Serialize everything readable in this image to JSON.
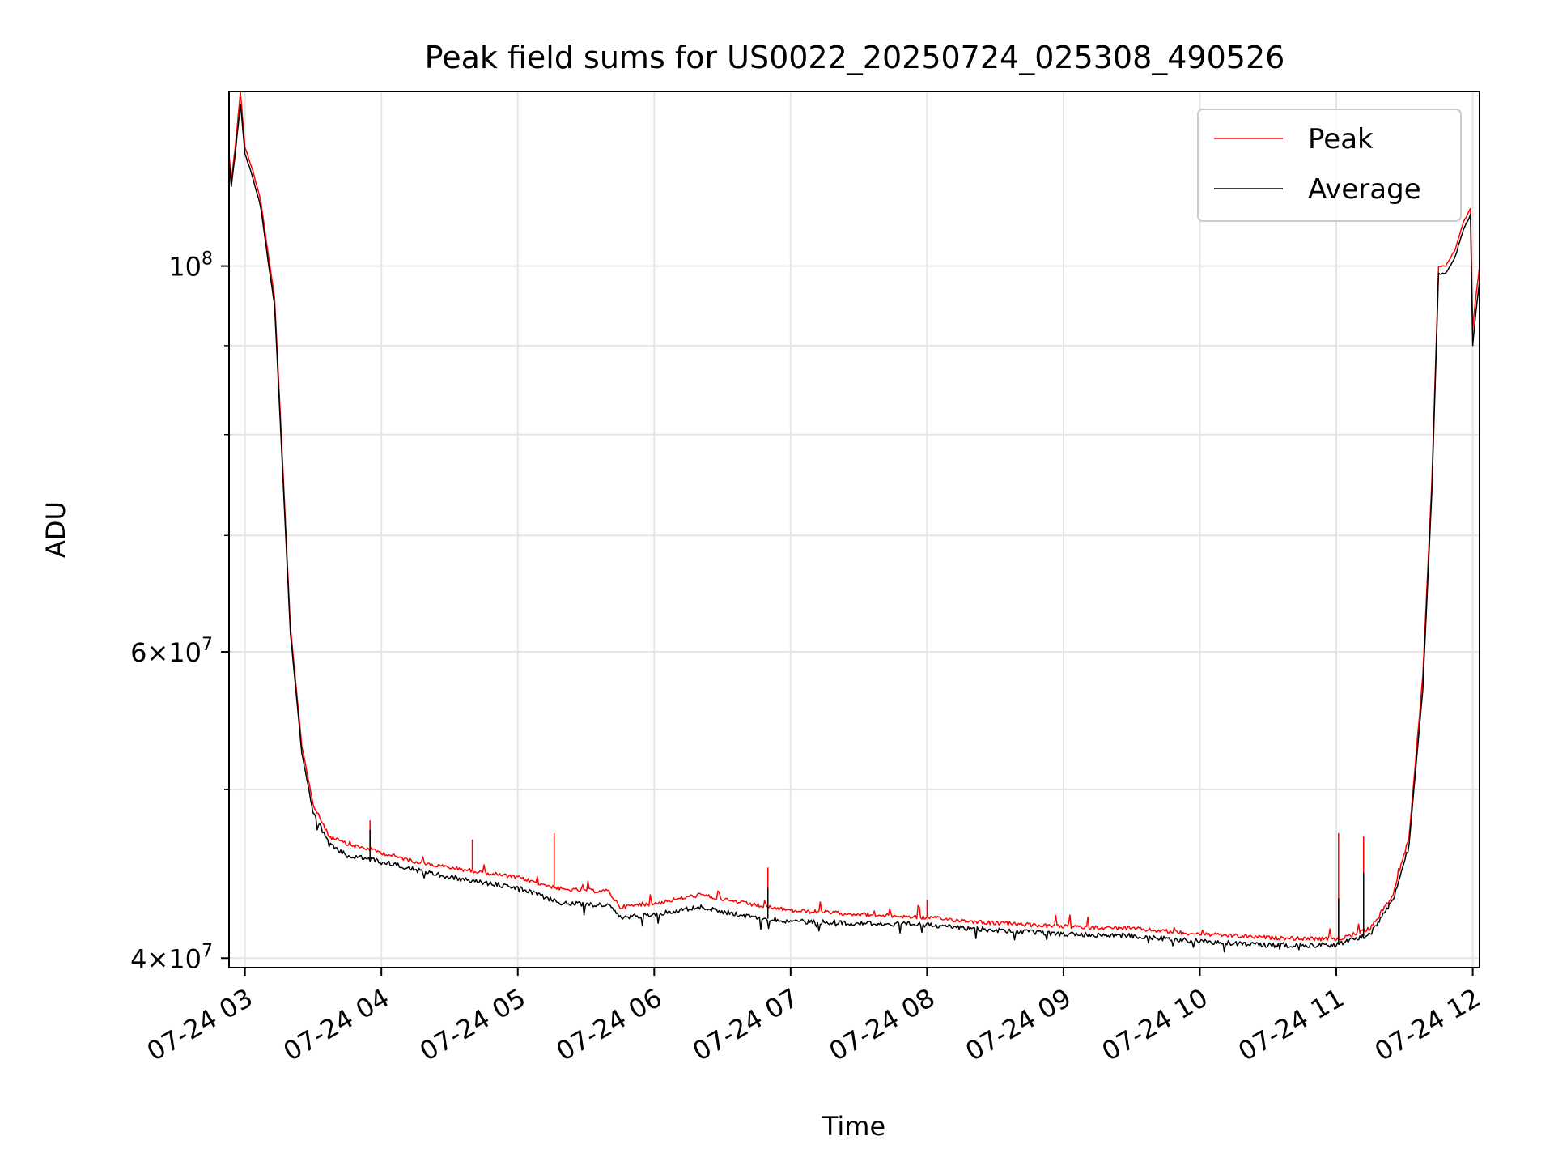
{
  "chart_data": {
    "type": "line",
    "title": "Peak field sums for US0022_20250724_025308_490526",
    "xlabel": "Time",
    "ylabel": "ADU",
    "y_scale": "log",
    "ylim": [
      39500000,
      126000000
    ],
    "xlim": [
      "2025-07-24 02:53",
      "2025-07-24 12:03"
    ],
    "grid": true,
    "legend_position": "top-right",
    "x_ticks": [
      {
        "t": "2025-07-24 03:00",
        "label": "07-24 03"
      },
      {
        "t": "2025-07-24 04:00",
        "label": "07-24 04"
      },
      {
        "t": "2025-07-24 05:00",
        "label": "07-24 05"
      },
      {
        "t": "2025-07-24 06:00",
        "label": "07-24 06"
      },
      {
        "t": "2025-07-24 07:00",
        "label": "07-24 07"
      },
      {
        "t": "2025-07-24 08:00",
        "label": "07-24 08"
      },
      {
        "t": "2025-07-24 09:00",
        "label": "07-24 09"
      },
      {
        "t": "2025-07-24 10:00",
        "label": "07-24 10"
      },
      {
        "t": "2025-07-24 11:00",
        "label": "07-24 11"
      },
      {
        "t": "2025-07-24 12:00",
        "label": "07-24 12"
      }
    ],
    "y_major_ticks": [
      {
        "value": 40000000,
        "base": "4×10",
        "exp": "7"
      },
      {
        "value": 60000000,
        "base": "6×10",
        "exp": "7"
      },
      {
        "value": 100000000,
        "base": "10",
        "exp": "8"
      }
    ],
    "y_minor_ticks": [
      50000000,
      70000000,
      80000000,
      90000000
    ],
    "series": [
      {
        "name": "Peak",
        "color": "#ff0000",
        "points": [
          [
            "2025-07-24 02:53",
            116000000
          ],
          [
            "2025-07-24 02:54",
            112000000
          ],
          [
            "2025-07-24 02:56",
            118000000
          ],
          [
            "2025-07-24 02:58",
            126000000
          ],
          [
            "2025-07-24 03:00",
            117000000
          ],
          [
            "2025-07-24 03:03",
            114000000
          ],
          [
            "2025-07-24 03:07",
            109000000
          ],
          [
            "2025-07-24 03:10",
            102000000
          ],
          [
            "2025-07-24 03:13",
            96000000
          ],
          [
            "2025-07-24 03:16",
            80000000
          ],
          [
            "2025-07-24 03:20",
            62000000
          ],
          [
            "2025-07-24 03:25",
            53000000
          ],
          [
            "2025-07-24 03:30",
            49000000
          ],
          [
            "2025-07-24 03:37",
            47000000
          ],
          [
            "2025-07-24 03:45",
            46500000
          ],
          [
            "2025-07-24 03:55",
            46200000
          ],
          [
            "2025-07-24 04:05",
            45800000
          ],
          [
            "2025-07-24 04:20",
            45300000
          ],
          [
            "2025-07-24 04:40",
            44900000
          ],
          [
            "2025-07-24 05:00",
            44500000
          ],
          [
            "2025-07-24 05:20",
            43800000
          ],
          [
            "2025-07-24 05:40",
            43700000
          ],
          [
            "2025-07-24 05:45",
            42800000
          ],
          [
            "2025-07-24 06:00",
            43000000
          ],
          [
            "2025-07-24 06:20",
            43500000
          ],
          [
            "2025-07-24 06:40",
            43000000
          ],
          [
            "2025-07-24 07:00",
            42600000
          ],
          [
            "2025-07-24 07:30",
            42400000
          ],
          [
            "2025-07-24 08:00",
            42200000
          ],
          [
            "2025-07-24 08:30",
            41900000
          ],
          [
            "2025-07-24 09:00",
            41700000
          ],
          [
            "2025-07-24 09:30",
            41600000
          ],
          [
            "2025-07-24 10:00",
            41300000
          ],
          [
            "2025-07-24 10:30",
            41100000
          ],
          [
            "2025-07-24 11:00",
            41000000
          ],
          [
            "2025-07-24 11:15",
            41600000
          ],
          [
            "2025-07-24 11:25",
            43500000
          ],
          [
            "2025-07-24 11:32",
            47000000
          ],
          [
            "2025-07-24 11:38",
            58000000
          ],
          [
            "2025-07-24 11:42",
            75000000
          ],
          [
            "2025-07-24 11:45",
            100000000
          ],
          [
            "2025-07-24 11:48",
            100000000
          ],
          [
            "2025-07-24 11:52",
            102000000
          ],
          [
            "2025-07-24 11:56",
            106000000
          ],
          [
            "2025-07-24 11:59",
            108000000
          ],
          [
            "2025-07-24 12:00",
            92000000
          ],
          [
            "2025-07-24 12:01",
            95000000
          ],
          [
            "2025-07-24 12:03",
            100000000
          ]
        ],
        "spikes": [
          [
            "2025-07-24 03:55",
            48000000
          ],
          [
            "2025-07-24 04:40",
            46800000
          ],
          [
            "2025-07-24 05:16",
            47200000
          ],
          [
            "2025-07-24 06:50",
            45100000
          ],
          [
            "2025-07-24 08:00",
            43200000
          ],
          [
            "2025-07-24 11:01",
            47200000
          ],
          [
            "2025-07-24 11:12",
            47000000
          ]
        ]
      },
      {
        "name": "Average",
        "color": "#000000",
        "points": [
          [
            "2025-07-24 02:53",
            115000000
          ],
          [
            "2025-07-24 02:54",
            111000000
          ],
          [
            "2025-07-24 02:56",
            117000000
          ],
          [
            "2025-07-24 02:58",
            124000000
          ],
          [
            "2025-07-24 03:00",
            116000000
          ],
          [
            "2025-07-24 03:03",
            113000000
          ],
          [
            "2025-07-24 03:07",
            108000000
          ],
          [
            "2025-07-24 03:10",
            101000000
          ],
          [
            "2025-07-24 03:13",
            95000000
          ],
          [
            "2025-07-24 03:16",
            79000000
          ],
          [
            "2025-07-24 03:20",
            61500000
          ],
          [
            "2025-07-24 03:25",
            52500000
          ],
          [
            "2025-07-24 03:30",
            48500000
          ],
          [
            "2025-07-24 03:37",
            46500000
          ],
          [
            "2025-07-24 03:45",
            45800000
          ],
          [
            "2025-07-24 03:55",
            45600000
          ],
          [
            "2025-07-24 04:05",
            45300000
          ],
          [
            "2025-07-24 04:20",
            44800000
          ],
          [
            "2025-07-24 04:40",
            44300000
          ],
          [
            "2025-07-24 05:00",
            43900000
          ],
          [
            "2025-07-24 05:20",
            43000000
          ],
          [
            "2025-07-24 05:40",
            42900000
          ],
          [
            "2025-07-24 05:45",
            42200000
          ],
          [
            "2025-07-24 06:00",
            42400000
          ],
          [
            "2025-07-24 06:20",
            42800000
          ],
          [
            "2025-07-24 06:40",
            42300000
          ],
          [
            "2025-07-24 07:00",
            42000000
          ],
          [
            "2025-07-24 07:30",
            41900000
          ],
          [
            "2025-07-24 08:00",
            41800000
          ],
          [
            "2025-07-24 08:30",
            41500000
          ],
          [
            "2025-07-24 09:00",
            41300000
          ],
          [
            "2025-07-24 09:30",
            41200000
          ],
          [
            "2025-07-24 10:00",
            40900000
          ],
          [
            "2025-07-24 10:30",
            40700000
          ],
          [
            "2025-07-24 11:00",
            40700000
          ],
          [
            "2025-07-24 11:15",
            41300000
          ],
          [
            "2025-07-24 11:25",
            43200000
          ],
          [
            "2025-07-24 11:32",
            46500000
          ],
          [
            "2025-07-24 11:38",
            57000000
          ],
          [
            "2025-07-24 11:42",
            74000000
          ],
          [
            "2025-07-24 11:45",
            99000000
          ],
          [
            "2025-07-24 11:48",
            99000000
          ],
          [
            "2025-07-24 11:52",
            101000000
          ],
          [
            "2025-07-24 11:56",
            105000000
          ],
          [
            "2025-07-24 11:59",
            107000000
          ],
          [
            "2025-07-24 12:00",
            90000000
          ],
          [
            "2025-07-24 12:01",
            93000000
          ],
          [
            "2025-07-24 12:03",
            98000000
          ]
        ],
        "spikes": [
          [
            "2025-07-24 03:55",
            47400000
          ],
          [
            "2025-07-24 06:50",
            43900000
          ],
          [
            "2025-07-24 11:01",
            43300000
          ],
          [
            "2025-07-24 11:12",
            44800000
          ]
        ]
      }
    ]
  }
}
